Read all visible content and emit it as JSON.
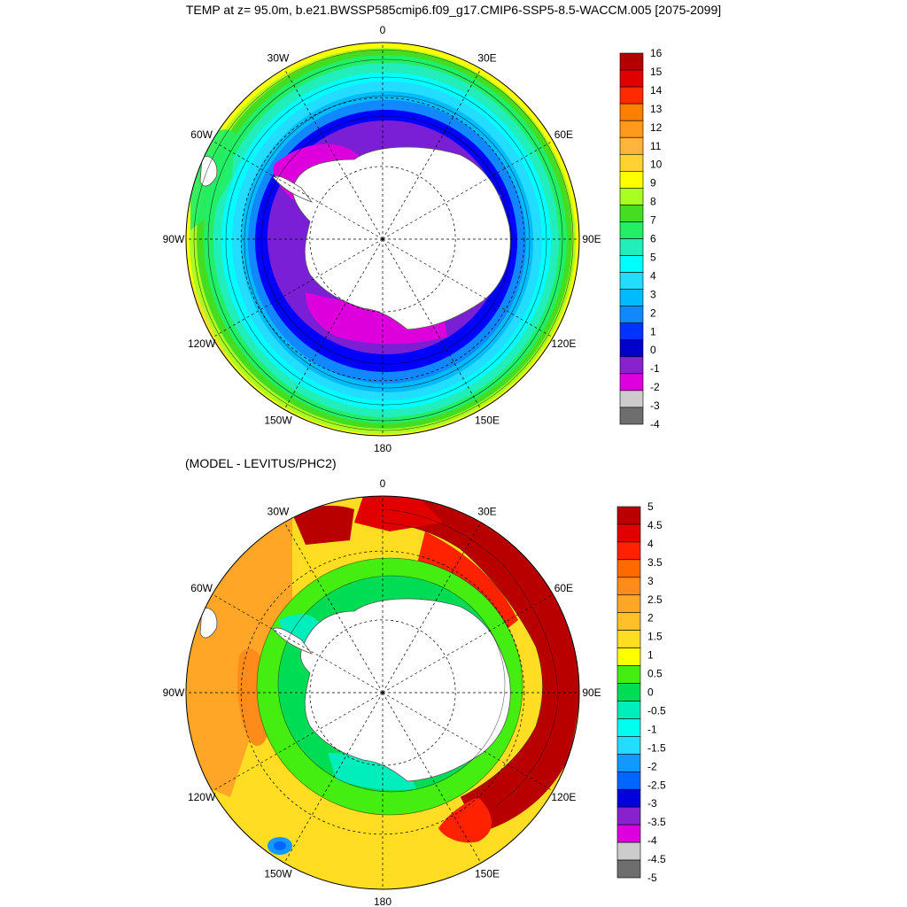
{
  "title": "TEMP at z=  95.0m, b.e21.BWSSP585cmip6.f09_g17.CMIP6-SSP5-8.5-WACCM.005 [2075-2099]",
  "subtitle": "(MODEL - LEVITUS/PHC2)",
  "panels": [
    {
      "id": "temp",
      "variable": "TEMP",
      "projection": "south-polar-stereographic",
      "lon_labels": [
        "0",
        "30E",
        "60E",
        "90E",
        "120E",
        "150E",
        "180",
        "150W",
        "120W",
        "90W",
        "60W",
        "30W"
      ],
      "colorbar": {
        "labels": [
          "16",
          "15",
          "14",
          "13",
          "12",
          "11",
          "10",
          "9",
          "8",
          "7",
          "6",
          "5",
          "4",
          "3",
          "2",
          "1",
          "0",
          "-1",
          "-2",
          "-3",
          "-4"
        ],
        "colors": [
          "#b30000",
          "#e00000",
          "#ff2a00",
          "#ff7f00",
          "#ff9a1e",
          "#ffb43c",
          "#ffd232",
          "#ffff00",
          "#aaff22",
          "#44dd22",
          "#22ee66",
          "#22eebb",
          "#00ffff",
          "#22ddff",
          "#00bbff",
          "#1188ff",
          "#0033ff",
          "#0000cc",
          "#8822cc",
          "#dd00dd",
          "#cccccc",
          "#6e6e6e"
        ]
      }
    },
    {
      "id": "diff",
      "variable": "MODEL - LEVITUS/PHC2",
      "projection": "south-polar-stereographic",
      "lon_labels": [
        "0",
        "30E",
        "60E",
        "90E",
        "120E",
        "150E",
        "180",
        "150W",
        "120W",
        "90W",
        "60W",
        "30W"
      ],
      "colorbar": {
        "labels": [
          "5",
          "4.5",
          "4",
          "3.5",
          "3",
          "2.5",
          "2",
          "1.5",
          "1",
          "0.5",
          "0",
          "-0.5",
          "-1",
          "-1.5",
          "-2",
          "-2.5",
          "-3",
          "-3.5",
          "-4",
          "-4.5",
          "-5"
        ],
        "colors": [
          "#b80000",
          "#e00000",
          "#ff2200",
          "#ff6a00",
          "#ff8c1a",
          "#ffa626",
          "#ffc02a",
          "#ffdd22",
          "#ffff00",
          "#44ee11",
          "#00dd55",
          "#00eebb",
          "#00ffee",
          "#22ddff",
          "#1199ff",
          "#0066ff",
          "#0000dd",
          "#8822cc",
          "#dd00dd",
          "#cccccc",
          "#6e6e6e"
        ]
      }
    }
  ]
}
